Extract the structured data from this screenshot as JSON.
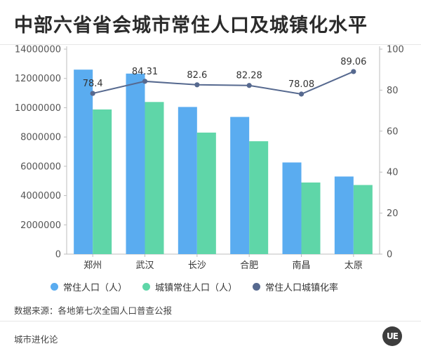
{
  "title": "中部六省省会城市常住人口及城镇化水平",
  "source": "数据来源：各地第七次全国人口普查公报",
  "brand": "城市进化论",
  "logo_text": "UE",
  "colors": {
    "population": "#5aacf0",
    "urban_population": "#5fd6a8",
    "urbanization_rate": "#56698f",
    "axis": "#bdbdbd",
    "grid": "#e9e9e9",
    "text": "#555555"
  },
  "chart_data": {
    "type": "bar",
    "title": "中部六省省会城市常住人口及城镇化水平",
    "categories": [
      "郑州",
      "武汉",
      "长沙",
      "合肥",
      "南昌",
      "太原"
    ],
    "series": [
      {
        "name": "常住人口（人）",
        "type": "bar",
        "axis": "left",
        "values": [
          12600000,
          12330000,
          10050000,
          9370000,
          6260000,
          5300000
        ]
      },
      {
        "name": "城镇常住人口（人）",
        "type": "bar",
        "axis": "left",
        "values": [
          9880000,
          10390000,
          8300000,
          7710000,
          4890000,
          4720000
        ]
      },
      {
        "name": "常住人口城镇化率",
        "type": "line",
        "axis": "right",
        "values": [
          78.4,
          84.31,
          82.6,
          82.28,
          78.08,
          89.06
        ],
        "labels": [
          "78.4",
          "84.31",
          "82.6",
          "82.28",
          "78.08",
          "89.06"
        ]
      }
    ],
    "left_axis": {
      "ylim": [
        0,
        14000000
      ],
      "ticks": [
        "0",
        "2000000",
        "4000000",
        "6000000",
        "8000000",
        "10000000",
        "12000000",
        "14000000"
      ]
    },
    "right_axis": {
      "ylim": [
        0,
        100
      ],
      "ticks": [
        "0",
        "20",
        "40",
        "60",
        "80",
        "100"
      ]
    },
    "grid": false,
    "legend_position": "bottom"
  }
}
